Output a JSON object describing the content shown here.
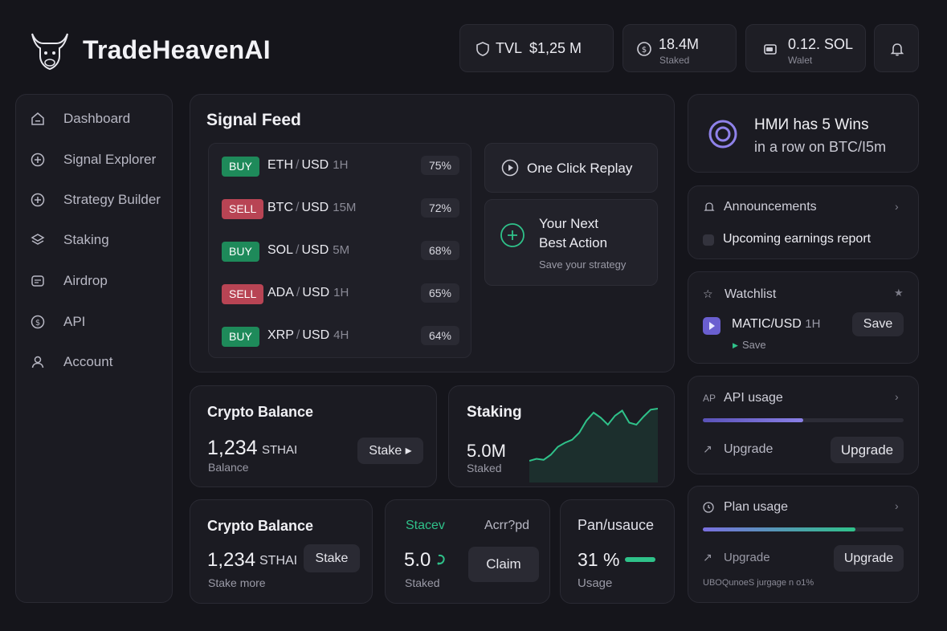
{
  "brand": {
    "name": "TradeHeavenAI"
  },
  "header": {
    "tvl": {
      "label": "TVL",
      "value": "$1,25 M"
    },
    "staked": {
      "value": "18.4M",
      "label": "Staked"
    },
    "wallet": {
      "value": "0.12. SOL",
      "label": "Walet"
    }
  },
  "sidebar": {
    "items": [
      {
        "label": "Dashboard",
        "icon": "home-icon"
      },
      {
        "label": "Signal Explorer",
        "icon": "plus-circle-icon"
      },
      {
        "label": "Strategy Builder",
        "icon": "plus-circle-icon"
      },
      {
        "label": "Staking",
        "icon": "layers-icon"
      },
      {
        "label": "Airdrop",
        "icon": "parachute-icon"
      },
      {
        "label": "API",
        "icon": "dollar-icon"
      },
      {
        "label": "Account",
        "icon": "user-icon"
      }
    ]
  },
  "signal_feed": {
    "title": "Signal Feed",
    "signals": [
      {
        "action": "BUY",
        "base": "ETH",
        "sep": "/",
        "quote": "USD",
        "tf": "1H",
        "conf": "75%"
      },
      {
        "action": "SELL",
        "base": "BTC",
        "sep": "/",
        "quote": "USD",
        "tf": "15M",
        "conf": "72%"
      },
      {
        "action": "BUY",
        "base": "SOL",
        "sep": "/",
        "quote": "USD",
        "tf": "5M",
        "conf": "68%"
      },
      {
        "action": "SELL",
        "base": "ADA",
        "sep": "/",
        "quote": "USD",
        "tf": "1H",
        "conf": "65%"
      },
      {
        "action": "BUY",
        "base": "XRP",
        "sep": "/",
        "quote": "USD",
        "tf": "4H",
        "conf": "64%"
      }
    ],
    "replay_label": "One Click Replay",
    "next_action": {
      "line1": "Your Next",
      "line2": "Best Action",
      "sub": "Save your strategy"
    }
  },
  "balance_card": {
    "title": "Crypto Balance",
    "amount": "1,234",
    "unit": "STHAI",
    "sub": "Balance",
    "button": "Stake ▸"
  },
  "staking_card": {
    "title": "Staking",
    "amount": "5.0M",
    "sub": "Staked",
    "sparkline": [
      12,
      14,
      13,
      18,
      26,
      30,
      33,
      40,
      52,
      60,
      55,
      48,
      57,
      62,
      50,
      48,
      56,
      63,
      64
    ]
  },
  "balance_card2": {
    "title": "Crypto Balance",
    "amount": "1,234",
    "unit": "STHAI",
    "sub": "Stake more",
    "button": "Stake"
  },
  "stake_card": {
    "title": "Stacev",
    "amount": "5.0",
    "sub": "Staked"
  },
  "accrued_card": {
    "title": "Acrr?pd",
    "button": "Claim"
  },
  "plan_mini": {
    "title": "Pan/usauce",
    "value": "31 %",
    "sub": "Usage",
    "fraction": 0.31
  },
  "streak": {
    "line1": "HMИ has 5 Wins",
    "line2": "in a row on BTC/I5m"
  },
  "announcements": {
    "title": "Announcements",
    "item": "Upcoming earnings report"
  },
  "watchlist": {
    "title": "Watchlist",
    "pair": "MATIC/USD",
    "tf": "1H",
    "button": "Save",
    "sub": "Save"
  },
  "api_usage": {
    "prefix": "AP",
    "title": "API usage",
    "fraction": 0.5,
    "upgrade_label": "Upgrade",
    "button": "Upgrade"
  },
  "plan_usage": {
    "title": "Plan usage",
    "fraction": 0.76,
    "upgrade_label": "Upgrade",
    "button": "Upgrade",
    "footer": "UBOQunoeS jurgage n o1%"
  },
  "colors": {
    "bg": "#15151b",
    "card": "#1b1b22",
    "buy": "#1e8a5a",
    "sell": "#b84454",
    "accent_green": "#2fc28a",
    "accent_purple": "#7a6fe0"
  }
}
